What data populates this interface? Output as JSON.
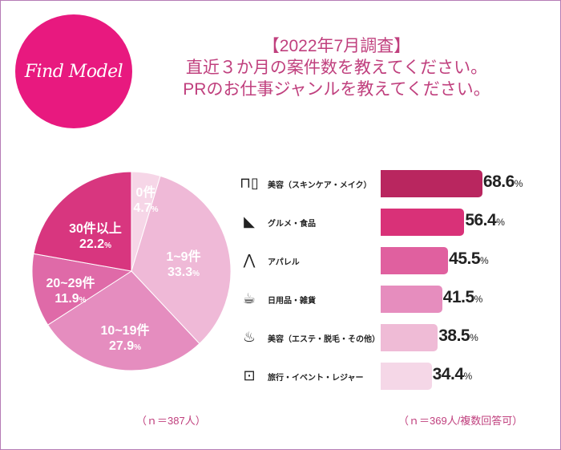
{
  "logo": {
    "text": "Find Model",
    "color": "#e8197f"
  },
  "title": {
    "line1": "【2022年7月調査】",
    "line2": "直近３か月の案件数を教えてください。",
    "line3": "PRのお仕事ジャンルを教えてください。"
  },
  "notes": {
    "pie": "（ｎ＝387人）",
    "bar": "（ｎ＝369人/複数回答可）"
  },
  "chart_data": [
    {
      "type": "pie",
      "categories": [
        "0件",
        "1~9件",
        "10~19件",
        "20~29件",
        "30件以上"
      ],
      "values": [
        4.7,
        33.3,
        27.9,
        11.9,
        22.2
      ],
      "unit": "%",
      "colors": [
        "#f6d6e7",
        "#efb9d7",
        "#e58dbf",
        "#df6aa8",
        "#d8367f"
      ]
    },
    {
      "type": "bar",
      "orientation": "horizontal",
      "categories": [
        "美容（スキンケア・メイク）",
        "グルメ・食品",
        "アパレル",
        "日用品・雑貨",
        "美容（エステ・脱毛・その他）",
        "旅行・イベント・レジャー"
      ],
      "values": [
        68.6,
        56.4,
        45.5,
        41.5,
        38.5,
        34.4
      ],
      "unit": "%",
      "icons": [
        "cosmetics-icon",
        "pizza-icon",
        "pants-icon",
        "cup-icon",
        "massage-icon",
        "suitcase-icon"
      ],
      "colors": [
        "#b9265f",
        "#d93178",
        "#e0609f",
        "#e68dbe",
        "#efbbd6",
        "#f5d7e7"
      ]
    }
  ]
}
